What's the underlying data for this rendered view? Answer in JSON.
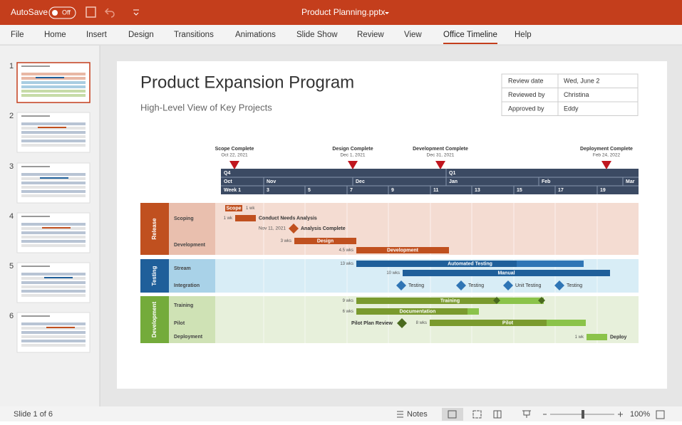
{
  "title_bar": {
    "autosave": "AutoSave",
    "toggle": "Off",
    "file_name": "Product Planning.pptx"
  },
  "ribbon": {
    "tabs": [
      "File",
      "Home",
      "Insert",
      "Design",
      "Transitions",
      "Animations",
      "Slide Show",
      "Review",
      "View",
      "Office Timeline",
      "Help"
    ]
  },
  "thumbnails": [
    "1",
    "2",
    "3",
    "4",
    "5",
    "6"
  ],
  "slide": {
    "title": "Product Expansion Program",
    "subtitle": "High-Level View of Key Projects",
    "review_table": [
      [
        "Review date",
        "Wed, June 2"
      ],
      [
        "Reviewed by",
        "Christina"
      ],
      [
        "Approved by",
        "Eddy"
      ]
    ],
    "milestones": [
      {
        "label": "Scope Complete",
        "date": "Oct 22, 2021"
      },
      {
        "label": "Design Complete",
        "date": "Dec 1, 2021"
      },
      {
        "label": "Development Complete",
        "date": "Dec 31, 2021"
      },
      {
        "label": "Deployment Complete",
        "date": "Feb 24, 2022"
      }
    ],
    "timescale": {
      "quarters": [
        "Q4",
        "Q1"
      ],
      "months": [
        "Oct",
        "Nov",
        "Dec",
        "Jan",
        "Feb",
        "Mar"
      ],
      "weeks": [
        "Week 1",
        "3",
        "5",
        "7",
        "9",
        "11",
        "13",
        "15",
        "17",
        "19"
      ]
    },
    "swimlanes": [
      {
        "name": "Release",
        "rows": [
          "Scoping",
          "Development"
        ]
      },
      {
        "name": "Testing",
        "rows": [
          "Stream",
          "Integration"
        ]
      },
      {
        "name": "Development",
        "rows": [
          "Training",
          "Pilot",
          "Deployment"
        ]
      }
    ],
    "tasks": [
      {
        "label": "Scope",
        "duration": "1 wk"
      },
      {
        "label": "Conduct Needs Analysis",
        "duration": "1 wk"
      },
      {
        "label": "Design",
        "duration": "3 wks"
      },
      {
        "label": "Development",
        "duration": "4.5 wks"
      },
      {
        "label": "Automated Testing",
        "duration": "13 wks"
      },
      {
        "label": "Manual",
        "duration": "10 wks"
      },
      {
        "label": "Training",
        "duration": "9 wks"
      },
      {
        "label": "Documentation",
        "duration": "6 wks"
      },
      {
        "label": "Pilot",
        "duration": "8 wks"
      },
      {
        "label": "Deploy",
        "duration": "1 wk"
      }
    ],
    "events": [
      {
        "label": "Analysis Complete",
        "date": "Nov 11, 2021"
      },
      {
        "label": "Testing"
      },
      {
        "label": "Testing"
      },
      {
        "label": "Unit Testing"
      },
      {
        "label": "Testing"
      },
      {
        "label": "Pilot Plan Review"
      }
    ]
  },
  "status_bar": {
    "slide_info": "Slide 1 of 6",
    "notes": "Notes",
    "zoom": "100%"
  }
}
